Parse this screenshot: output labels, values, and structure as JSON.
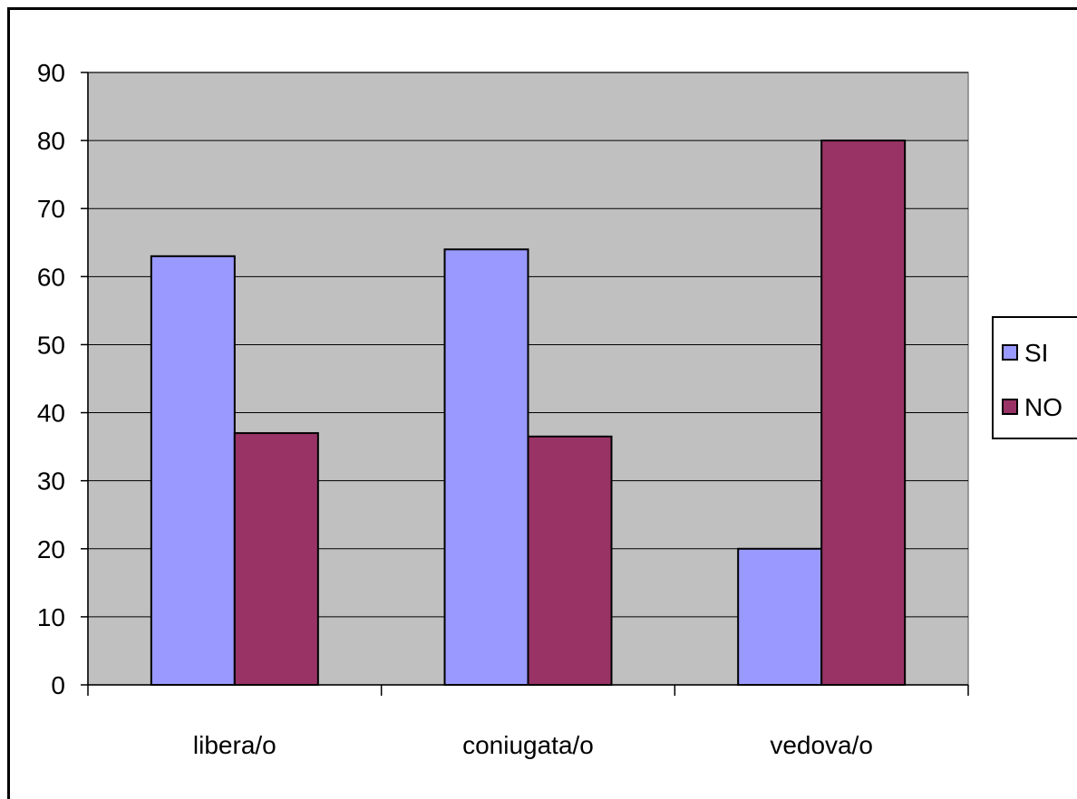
{
  "chart_data": {
    "type": "bar",
    "categories": [
      "libera/o",
      "coniugata/o",
      "vedova/o"
    ],
    "series": [
      {
        "name": "SI",
        "values": [
          63,
          64,
          20
        ]
      },
      {
        "name": "NO",
        "values": [
          37,
          36.5,
          80
        ]
      }
    ],
    "ylim": [
      0,
      90
    ],
    "yticks": [
      0,
      10,
      20,
      30,
      40,
      50,
      60,
      70,
      80,
      90
    ],
    "grid": true,
    "legend": "right",
    "colors": {
      "SI": "#9999ff",
      "NO": "#993366",
      "plot_background": "#c0c0c0",
      "gridline": "#000000"
    }
  }
}
